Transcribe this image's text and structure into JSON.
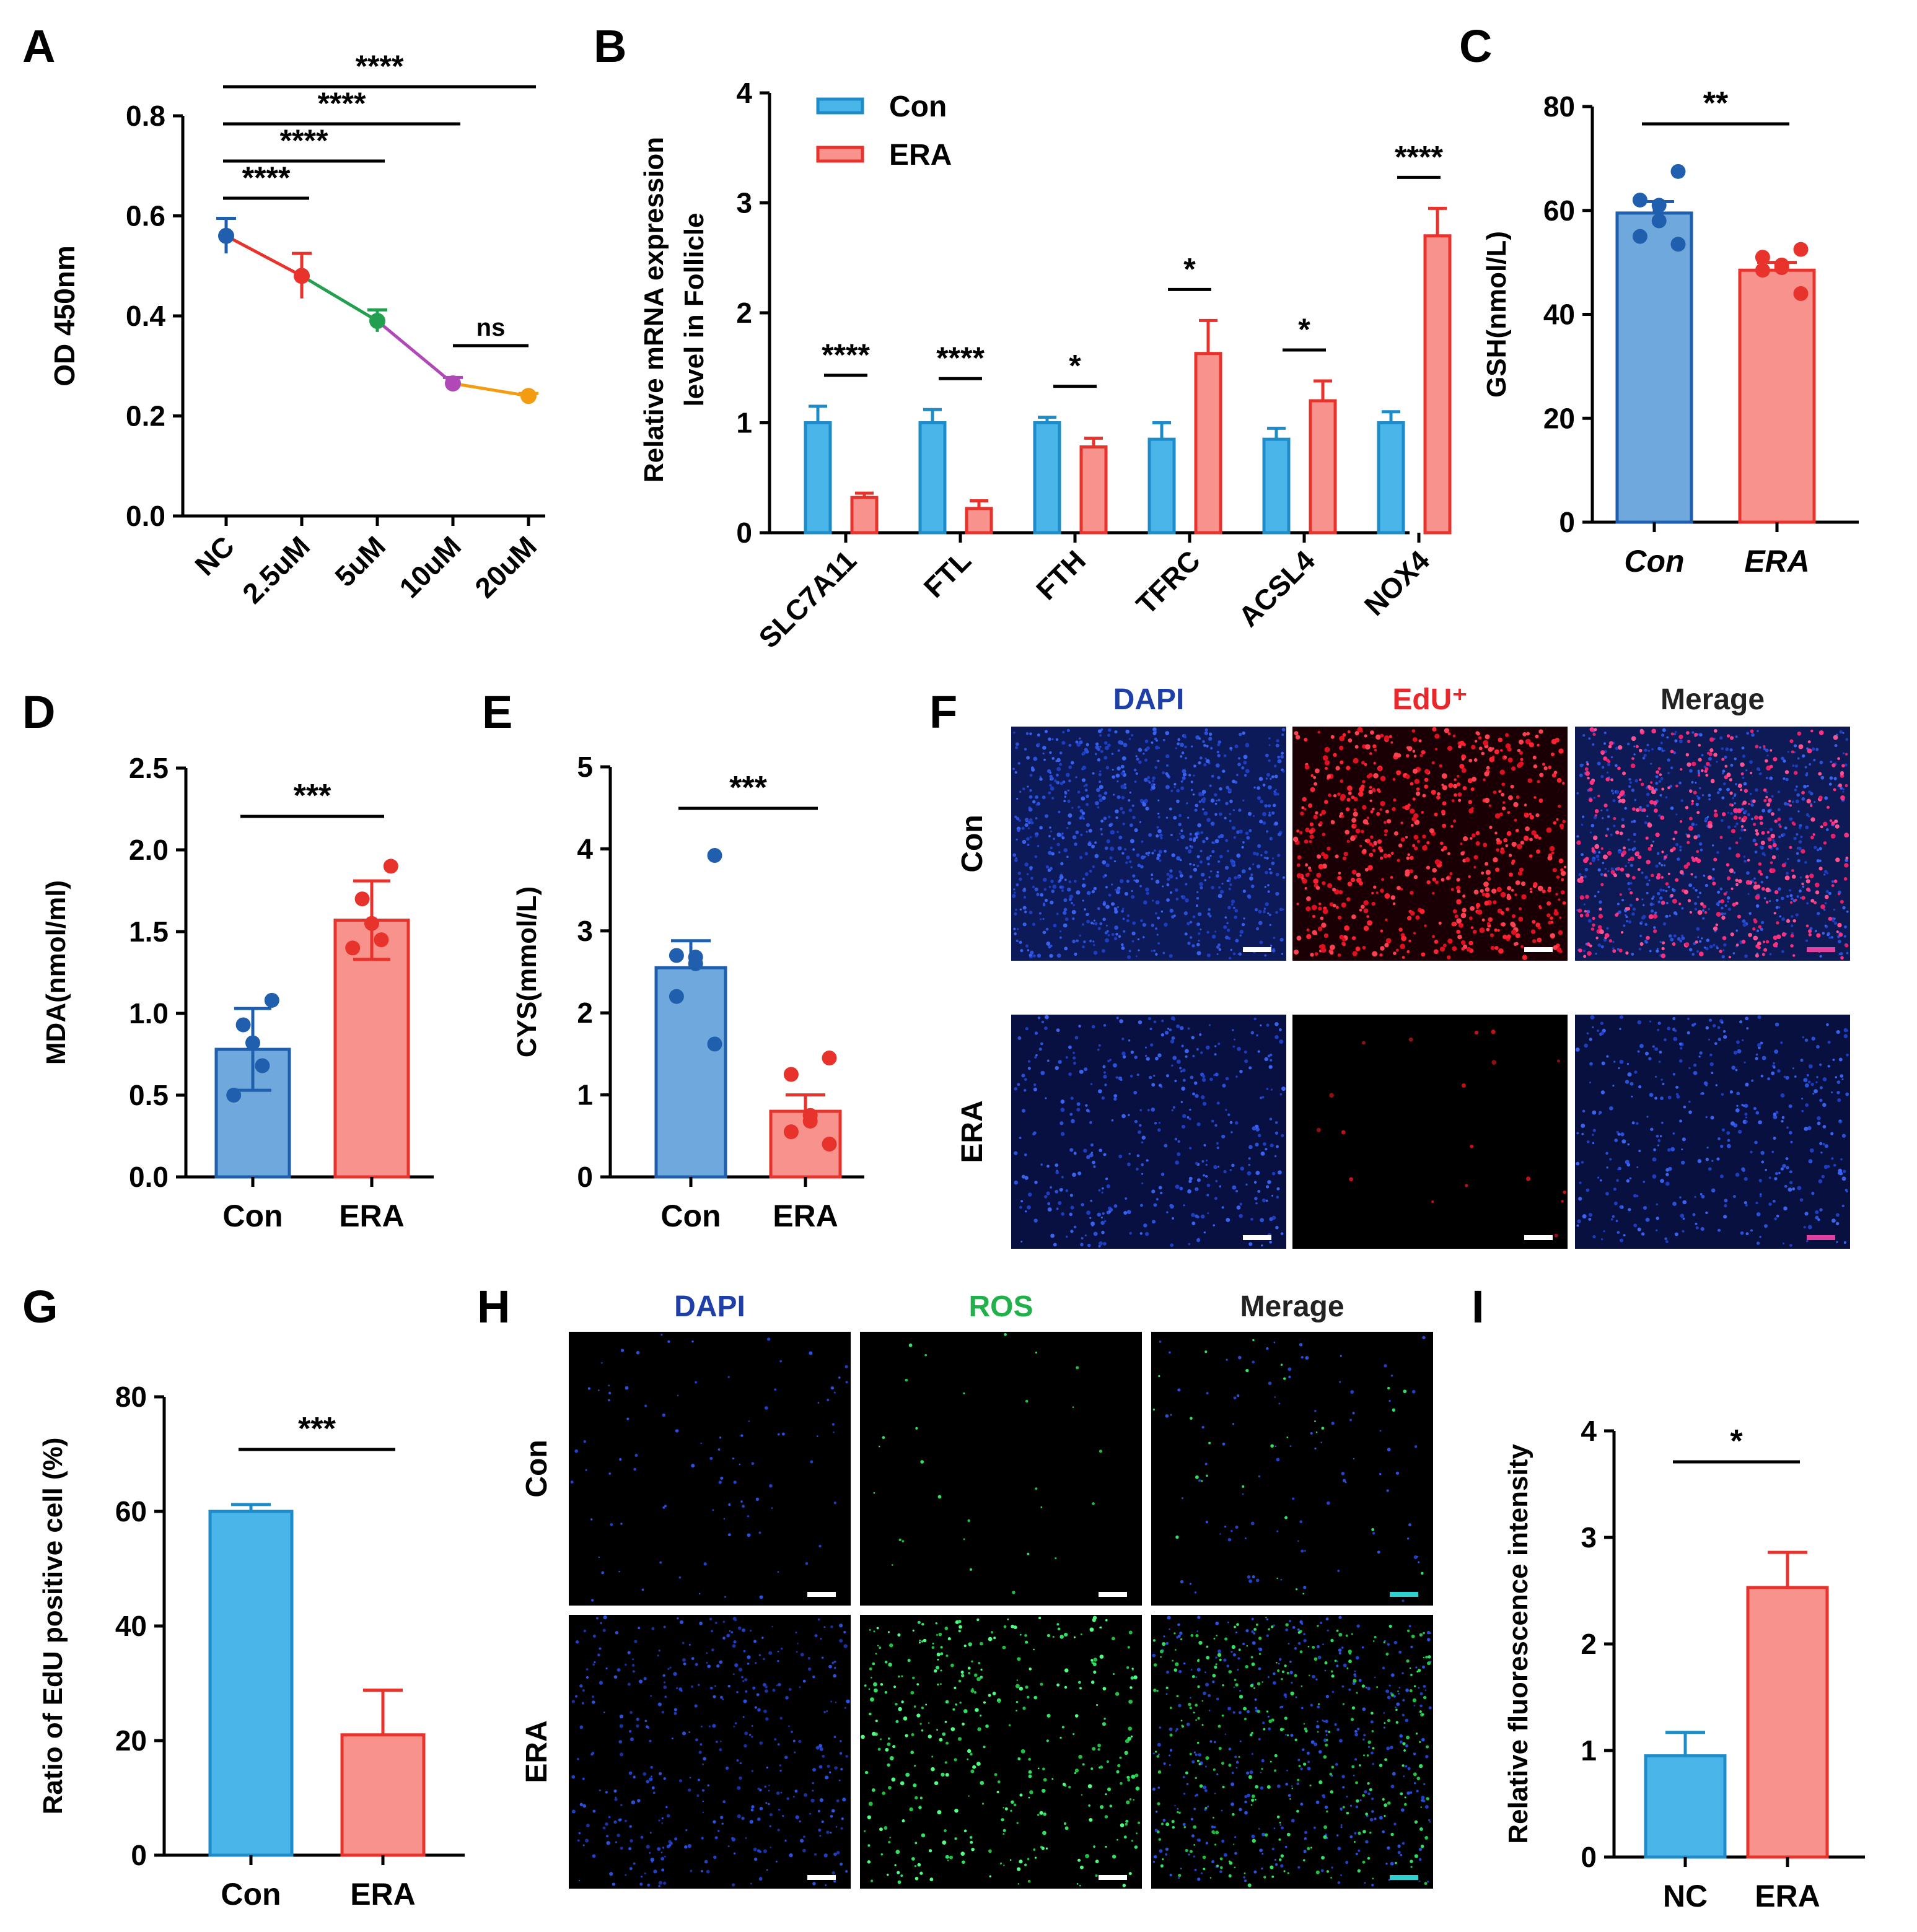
{
  "colors": {
    "con_fill": "#6FA8DC",
    "con_stroke": "#1F5FAD",
    "era_fill": "#F7928C",
    "era_stroke": "#E8322C",
    "pos_fill": "#49B5E8",
    "pos_stroke": "#1E8CC8",
    "dapi_label": "#1E3FA8",
    "edu_label": "#E8282C",
    "ros_label": "#22B04A"
  },
  "panel_letters": [
    "A",
    "B",
    "C",
    "D",
    "E",
    "F",
    "G",
    "H",
    "I"
  ],
  "chart_data": [
    {
      "panel": "A",
      "type": "line",
      "ylabel": "OD 450nm",
      "ylim": [
        0,
        0.8
      ],
      "yticks": [
        "0.0",
        "0.2",
        "0.4",
        "0.6",
        "0.8"
      ],
      "categories": [
        "NC",
        "2.5uM",
        "5uM",
        "10uM",
        "20uM"
      ],
      "values": [
        0.56,
        0.48,
        0.39,
        0.265,
        0.24
      ],
      "errors": [
        0.035,
        0.045,
        0.022,
        0.012,
        0.005
      ],
      "point_colors": [
        "#1F5FAD",
        "#E8322C",
        "#22A050",
        "#B048B8",
        "#F39C12"
      ],
      "significance": [
        {
          "from": 0,
          "to": 4,
          "label": "****"
        },
        {
          "from": 0,
          "to": 3,
          "label": "****"
        },
        {
          "from": 0,
          "to": 2,
          "label": "****"
        },
        {
          "from": 0,
          "to": 1,
          "label": "****"
        },
        {
          "from": 3,
          "to": 4,
          "label": "ns"
        }
      ]
    },
    {
      "panel": "B",
      "type": "bar",
      "ylabel_lines": [
        "Relative mRNA expression",
        "level in Follicle"
      ],
      "ylim": [
        0,
        4
      ],
      "yticks": [
        "0",
        "1",
        "2",
        "3",
        "4"
      ],
      "categories": [
        "SLC7A11",
        "FTL",
        "FTH",
        "TFRC",
        "ACSL4",
        "NOX4"
      ],
      "series": [
        {
          "name": "Con",
          "values": [
            1.0,
            1.0,
            1.0,
            0.85,
            0.85,
            1.0
          ],
          "errors": [
            0.15,
            0.12,
            0.05,
            0.15,
            0.1,
            0.1
          ]
        },
        {
          "name": "ERA",
          "values": [
            0.32,
            0.22,
            0.78,
            1.63,
            1.2,
            2.7
          ],
          "errors": [
            0.04,
            0.07,
            0.08,
            0.3,
            0.18,
            0.25
          ]
        }
      ],
      "significance": [
        "****",
        "****",
        "*",
        "*",
        "*",
        "****"
      ]
    },
    {
      "panel": "C",
      "type": "bar",
      "ylabel": "GSH(nmol/L)",
      "ylim": [
        0,
        80
      ],
      "yticks": [
        "0",
        "20",
        "40",
        "60",
        "80"
      ],
      "categories": [
        "Con",
        "ERA"
      ],
      "italic_categories": true,
      "values": [
        59.5,
        48.5
      ],
      "errors": [
        2.2,
        1.5
      ],
      "points": [
        [
          67.5,
          62,
          61,
          58,
          55,
          53.5
        ],
        [
          52.5,
          51,
          49.5,
          49,
          48.5,
          44
        ]
      ],
      "significance": "**"
    },
    {
      "panel": "D",
      "type": "bar",
      "ylabel": "MDA(nmol/ml)",
      "ylim": [
        0,
        2.5
      ],
      "yticks": [
        "0.0",
        "0.5",
        "1.0",
        "1.5",
        "2.0",
        "2.5"
      ],
      "categories": [
        "Con",
        "ERA"
      ],
      "values": [
        0.78,
        1.57
      ],
      "errors": [
        0.25,
        0.24
      ],
      "points": [
        [
          1.08,
          0.93,
          0.82,
          0.68,
          0.5
        ],
        [
          1.9,
          1.7,
          1.55,
          1.45,
          1.4
        ]
      ],
      "significance": "***"
    },
    {
      "panel": "E",
      "type": "bar",
      "ylabel": "CYS(mmol/L)",
      "ylim": [
        0,
        5
      ],
      "yticks": [
        "0",
        "1",
        "2",
        "3",
        "4",
        "5"
      ],
      "categories": [
        "Con",
        "ERA"
      ],
      "values": [
        2.55,
        0.8
      ],
      "errors": [
        0.33,
        0.2
      ],
      "points": [
        [
          3.92,
          2.7,
          2.68,
          2.6,
          2.2,
          1.62
        ],
        [
          1.45,
          1.25,
          0.75,
          0.68,
          0.55,
          0.4
        ]
      ],
      "significance": "***"
    },
    {
      "panel": "G",
      "type": "bar",
      "ylabel": "Ratio of EdU positive cell (%)",
      "ylim": [
        0,
        80
      ],
      "yticks": [
        "0",
        "20",
        "40",
        "60",
        "80"
      ],
      "categories": [
        "Con",
        "ERA"
      ],
      "values": [
        60,
        21
      ],
      "errors": [
        1.2,
        7.8
      ],
      "significance": "***"
    },
    {
      "panel": "I",
      "type": "bar",
      "ylabel": "Relative fluorescence intensity",
      "ylim": [
        0,
        4
      ],
      "yticks": [
        "0",
        "1",
        "2",
        "3",
        "4"
      ],
      "categories": [
        "NC",
        "ERA"
      ],
      "values": [
        0.95,
        2.53
      ],
      "errors": [
        0.22,
        0.33
      ],
      "significance": "*"
    }
  ],
  "panel_F": {
    "columns": [
      "DAPI",
      "EdU⁺",
      "Merage"
    ],
    "rows": [
      "Con",
      "ERA"
    ]
  },
  "panel_H": {
    "columns": [
      "DAPI",
      "ROS",
      "Merage"
    ],
    "rows": [
      "Con",
      "ERA"
    ]
  }
}
